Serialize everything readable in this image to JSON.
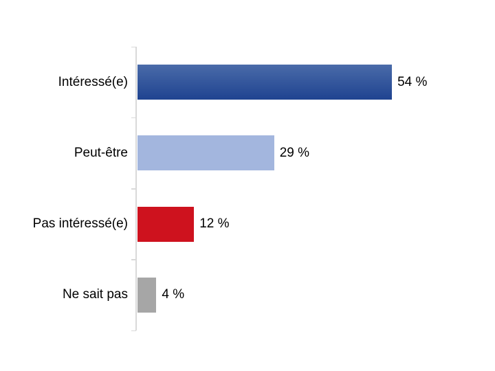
{
  "chart_data": {
    "type": "bar",
    "orientation": "horizontal",
    "title": "",
    "categories": [
      "Intéressé(e)",
      "Peut-être",
      "Pas intéressé(e)",
      "Ne sait pas"
    ],
    "values": [
      54,
      29,
      12,
      4
    ],
    "value_labels": [
      "54 %",
      "29 %",
      "12 %",
      "4 %"
    ],
    "series_colors": [
      {
        "style": "gradient",
        "top": "#4A6BA9",
        "bottom": "#1F4390"
      },
      {
        "style": "solid",
        "color": "#A3B6DE"
      },
      {
        "style": "solid",
        "color": "#CE121E"
      },
      {
        "style": "solid",
        "color": "#A6A6A6"
      }
    ],
    "axis_color": "#D9D9D9",
    "text_color": "#000000",
    "xlim": [
      0,
      75
    ],
    "grid": false,
    "legend": false,
    "value_label_position": "outside-end"
  }
}
